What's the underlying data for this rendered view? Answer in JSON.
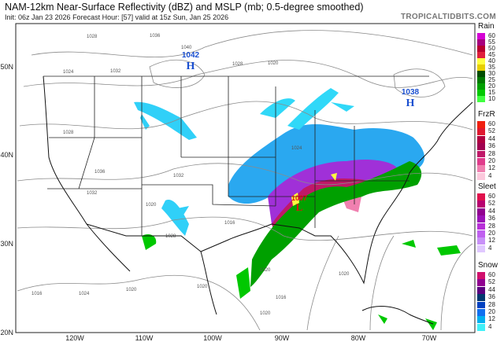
{
  "header": {
    "title": "NAM-12km Near-Surface Reflectivity (dBZ) and MSLP (mb; 0.5-degree smoothed)",
    "subtitle": "Init: 06z Jan 23 2026   Forecast Hour: [57]   valid at 15z Sun, Jan 25 2026",
    "brand": "TROPICALTIDBITS.COM"
  },
  "map": {
    "lat_labels": [
      "50N",
      "40N",
      "30N",
      "20N"
    ],
    "lon_labels": [
      "120W",
      "110W",
      "100W",
      "90W",
      "80W",
      "70W"
    ],
    "highs": [
      {
        "label": "H",
        "pressure": "1042"
      },
      {
        "label": "H",
        "pressure": "1038"
      }
    ],
    "low": {
      "label": "L",
      "pressure": "1007"
    },
    "isobar_labels": [
      "1036",
      "1040",
      "1028",
      "1032",
      "1024",
      "1028",
      "1036",
      "1032",
      "1020",
      "1016",
      "1020",
      "1024",
      "1028",
      "1032",
      "1028",
      "1020",
      "1024",
      "1020",
      "1016",
      "1020",
      "1020",
      "1016",
      "1020"
    ],
    "colors": {
      "high": "#1a4fd0",
      "low": "#e01010",
      "border": "#222222",
      "isobar": "#8a8a8a"
    }
  },
  "legend": [
    {
      "title": "Rain",
      "labels": [
        "60",
        "55",
        "50",
        "45",
        "40",
        "35",
        "30",
        "25",
        "20",
        "15",
        "10"
      ],
      "colors": [
        "#d400d4",
        "#a8007e",
        "#b8002e",
        "#e0203c",
        "#ffff40",
        "#e8d000",
        "#004d00",
        "#007a00",
        "#00a000",
        "#00c800",
        "#40ff40"
      ]
    },
    {
      "title": "FrzR",
      "labels": [
        "60",
        "52",
        "44",
        "36",
        "28",
        "20",
        "12",
        "4"
      ],
      "colors": [
        "#f02010",
        "#e01830",
        "#b00040",
        "#a00050",
        "#c01868",
        "#e03c8c",
        "#f080b0",
        "#fbc8dc"
      ]
    },
    {
      "title": "Sleet",
      "labels": [
        "60",
        "52",
        "44",
        "36",
        "28",
        "20",
        "12",
        "4"
      ],
      "colors": [
        "#e0104c",
        "#b80070",
        "#900090",
        "#9a10b8",
        "#b830d8",
        "#c060f0",
        "#c890f8",
        "#e0c8ff"
      ]
    },
    {
      "title": "Snow",
      "labels": [
        "60",
        "52",
        "44",
        "36",
        "28",
        "20",
        "12",
        "4"
      ],
      "colors": [
        "#d0106c",
        "#900090",
        "#5a0080",
        "#003870",
        "#0040c0",
        "#1070f0",
        "#00b0f0",
        "#40f0f8"
      ]
    }
  ]
}
